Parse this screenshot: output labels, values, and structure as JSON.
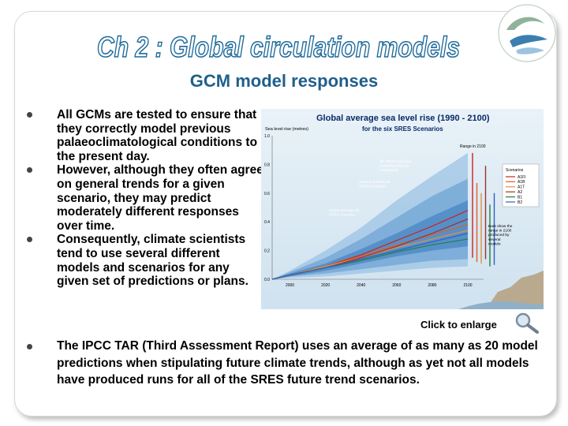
{
  "slide": {
    "title": "Ch 2 : Global circulation models",
    "subtitle": "GCM model responses",
    "bullets": [
      "All GCMs are tested to ensure that they correctly model previous palaeoclimatological conditions to the present day.",
      "However, although they often agree on general trends for a given scenario, they may predict moderately different responses over time.",
      "Consequently, climate scientists tend to use several different models and scenarios for any given set of predictions or plans."
    ],
    "bottom_bullet": "The IPCC TAR (Third Assessment Report) uses an average of as many as 20 model predictions when stipulating future climate trends, although as yet not all models have produced runs for all of the SRES future trend scenarios.",
    "enlarge_label": "Click to enlarge"
  },
  "chart_data": {
    "type": "line",
    "title": "Global average sea level rise (1990 - 2100)",
    "subtitle": "for the six SRES Scenarios",
    "ylabel": "Sea level rise (metres)",
    "xlabel": "",
    "x": [
      1990,
      2000,
      2020,
      2040,
      2060,
      2080,
      2100
    ],
    "xticks": [
      2000,
      2020,
      2040,
      2060,
      2080,
      2100
    ],
    "yticks": [
      "0.0",
      "0.2",
      "0.4",
      "0.6",
      "0.8",
      "1.0"
    ],
    "ylim": [
      0,
      1.0
    ],
    "annotations": [
      "All SRES envelope including land-ice uncertainty",
      "Several models all SRES envelope",
      "Model average all SRES envelope",
      "Range in 2100",
      "Bars show the range in 2100 produced by several models"
    ],
    "legend_title": "Scenarios",
    "series": [
      {
        "name": "A1FI",
        "color": "#d02020",
        "values": [
          0,
          0.03,
          0.09,
          0.17,
          0.27,
          0.37,
          0.48
        ]
      },
      {
        "name": "A1B",
        "color": "#e06020",
        "values": [
          0,
          0.03,
          0.09,
          0.16,
          0.24,
          0.31,
          0.38
        ]
      },
      {
        "name": "A1T",
        "color": "#e09040",
        "values": [
          0,
          0.03,
          0.09,
          0.15,
          0.22,
          0.28,
          0.34
        ]
      },
      {
        "name": "A2",
        "color": "#a03030",
        "values": [
          0,
          0.03,
          0.08,
          0.15,
          0.23,
          0.32,
          0.42
        ]
      },
      {
        "name": "B1",
        "color": "#208040",
        "values": [
          0,
          0.03,
          0.08,
          0.13,
          0.19,
          0.24,
          0.28
        ]
      },
      {
        "name": "B2",
        "color": "#3060c0",
        "values": [
          0,
          0.03,
          0.08,
          0.14,
          0.2,
          0.26,
          0.32
        ]
      }
    ],
    "envelopes": [
      {
        "name": "All SRES envelope including land-ice uncertainty",
        "color": "#9cc3e4",
        "low": [
          0,
          0.01,
          0.02,
          0.04,
          0.06,
          0.08,
          0.09
        ],
        "high": [
          0,
          0.06,
          0.2,
          0.36,
          0.55,
          0.72,
          0.88
        ]
      },
      {
        "name": "Several models all SRES envelope",
        "color": "#6fa4d4",
        "low": [
          0,
          0.02,
          0.04,
          0.07,
          0.1,
          0.13,
          0.14
        ],
        "high": [
          0,
          0.05,
          0.15,
          0.28,
          0.43,
          0.58,
          0.7
        ]
      },
      {
        "name": "Model average all SRES envelope",
        "color": "#4a86c2",
        "low": [
          0,
          0.02,
          0.06,
          0.11,
          0.16,
          0.2,
          0.23
        ],
        "high": [
          0,
          0.04,
          0.11,
          0.21,
          0.32,
          0.44,
          0.55
        ]
      }
    ],
    "range_bars": [
      {
        "name": "A1FI",
        "low": 0.15,
        "high": 0.88
      },
      {
        "name": "A1B",
        "low": 0.12,
        "high": 0.67
      },
      {
        "name": "A1T",
        "low": 0.11,
        "high": 0.6
      },
      {
        "name": "A2",
        "low": 0.14,
        "high": 0.79
      },
      {
        "name": "B1",
        "low": 0.09,
        "high": 0.52
      },
      {
        "name": "B2",
        "low": 0.1,
        "high": 0.6
      }
    ],
    "colors": {
      "background_top": "#e9f2f8",
      "background_bottom": "#cfe2ef",
      "title": "#0a2a66"
    }
  }
}
